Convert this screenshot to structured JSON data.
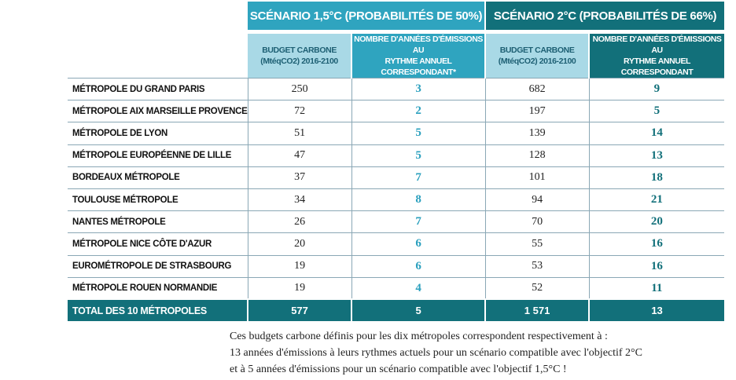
{
  "scenarios": {
    "s1": "SCÉNARIO 1,5°C (PROBABILITÉS DE 50%)",
    "s2": "SCÉNARIO 2°C (PROBABILITÉS DE 66%)"
  },
  "subheaders": {
    "budget_line1": "BUDGET CARBONE",
    "budget_line2": "(MtéqCO2) 2016-2100",
    "years1_line1": "NOMBRE D'ANNÉES D'ÉMISSIONS AU",
    "years1_line2": "RYTHME ANNUEL CORRESPONDANT*",
    "years2_line1": "NOMBRE D'ANNÉES D'ÉMISSIONS AU",
    "years2_line2": "RYTHME ANNUEL CORRESPONDANT"
  },
  "rows": [
    {
      "name": "MÉTROPOLE DU GRAND PARIS",
      "b15": "250",
      "y15": "3",
      "b2": "682",
      "y2": "9"
    },
    {
      "name": "MÉTROPOLE AIX MARSEILLE PROVENCE",
      "b15": "72",
      "y15": "2",
      "b2": "197",
      "y2": "5"
    },
    {
      "name": "MÉTROPOLE DE LYON",
      "b15": "51",
      "y15": "5",
      "b2": "139",
      "y2": "14"
    },
    {
      "name": "MÉTROPOLE EUROPÉENNE DE LILLE",
      "b15": "47",
      "y15": "5",
      "b2": "128",
      "y2": "13"
    },
    {
      "name": "BORDEAUX MÉTROPOLE",
      "b15": "37",
      "y15": "7",
      "b2": "101",
      "y2": "18"
    },
    {
      "name": "TOULOUSE MÉTROPOLE",
      "b15": "34",
      "y15": "8",
      "b2": "94",
      "y2": "21"
    },
    {
      "name": "NANTES MÉTROPOLE",
      "b15": "26",
      "y15": "7",
      "b2": "70",
      "y2": "20"
    },
    {
      "name": "MÉTROPOLE NICE CÔTE D'AZUR",
      "b15": "20",
      "y15": "6",
      "b2": "55",
      "y2": "16"
    },
    {
      "name": "EUROMÉTROPOLE DE STRASBOURG",
      "b15": "19",
      "y15": "6",
      "b2": "53",
      "y2": "16"
    },
    {
      "name": "MÉTROPOLE ROUEN NORMANDIE",
      "b15": "19",
      "y15": "4",
      "b2": "52",
      "y2": "11"
    }
  ],
  "total": {
    "name": "TOTAL DES 10 MÉTROPOLES",
    "b15": "577",
    "y15": "5",
    "b2": "1 571",
    "y2": "13"
  },
  "note": {
    "line1": "Ces budgets carbone définis pour les dix métropoles correspondent respectivement à :",
    "line2": "13 années d'émissions à leurs rythmes actuels pour un scénario compatible avec l'objectif 2°C",
    "line3": "et à 5 années d'émissions pour un scénario compatible avec l'objectif 1,5°C !"
  },
  "colors": {
    "light_teal": "#2fa4bf",
    "dark_teal": "#12707a",
    "pale_teal": "#a9d9e6"
  }
}
